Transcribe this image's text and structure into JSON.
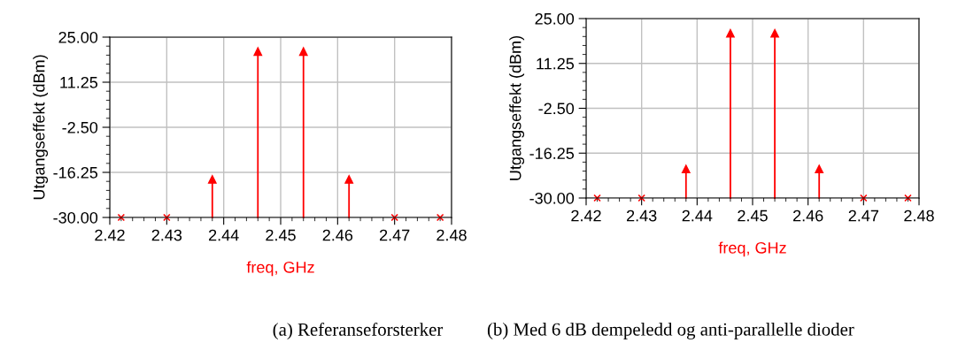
{
  "chart_data": [
    {
      "type": "lollipop",
      "xlabel": "freq, GHz",
      "ylabel": "Utgangseffekt (dBm)",
      "annotations": [
        "(a) Referanseforsterker"
      ],
      "xlim": [
        2.42,
        2.48
      ],
      "xticks": [
        2.42,
        2.43,
        2.44,
        2.45,
        2.46,
        2.47,
        2.48
      ],
      "ylim": [
        -30,
        25
      ],
      "yticks": [
        {
          "value": -30,
          "label": "-30.00"
        },
        {
          "value": -16.25,
          "label": "-16.25"
        },
        {
          "value": -2.5,
          "label": "-2.50"
        },
        {
          "value": 11.25,
          "label": "11.25"
        },
        {
          "value": 25,
          "label": "25.00"
        }
      ],
      "grid": true,
      "legend": false,
      "series": [
        {
          "color": "#ff0000",
          "marker": "triangle",
          "x": [
            2.438,
            2.446,
            2.454,
            2.462
          ],
          "values": [
            -18.4,
            20.6,
            20.6,
            -18.4
          ]
        },
        {
          "type": "scatter",
          "color": "#ff0000",
          "marker": "cross",
          "x": [
            2.422,
            2.43,
            2.47,
            2.478
          ],
          "values": [
            -30,
            -30,
            -30,
            -30
          ]
        }
      ]
    },
    {
      "type": "lollipop",
      "xlabel": "freq, GHz",
      "ylabel": "Utgangseffekt (dBm)",
      "annotations": [
        "(b) Med 6 dB dempeledd og anti-parallelle dioder"
      ],
      "xlim": [
        2.42,
        2.48
      ],
      "xticks": [
        2.42,
        2.43,
        2.44,
        2.45,
        2.46,
        2.47,
        2.48
      ],
      "ylim": [
        -30,
        25
      ],
      "yticks": [
        {
          "value": -30,
          "label": "-30.00"
        },
        {
          "value": -16.25,
          "label": "-16.25"
        },
        {
          "value": -2.5,
          "label": "-2.50"
        },
        {
          "value": 11.25,
          "label": "11.25"
        },
        {
          "value": 25,
          "label": "25.00"
        }
      ],
      "grid": true,
      "legend": false,
      "series": [
        {
          "color": "#ff0000",
          "marker": "triangle",
          "x": [
            2.438,
            2.446,
            2.454,
            2.462
          ],
          "values": [
            -21.1,
            20.5,
            20.5,
            -21.1
          ]
        },
        {
          "type": "scatter",
          "color": "#ff0000",
          "marker": "cross",
          "x": [
            2.422,
            2.43,
            2.47,
            2.478
          ],
          "values": [
            -30,
            -30,
            -30,
            -30
          ]
        }
      ]
    }
  ]
}
